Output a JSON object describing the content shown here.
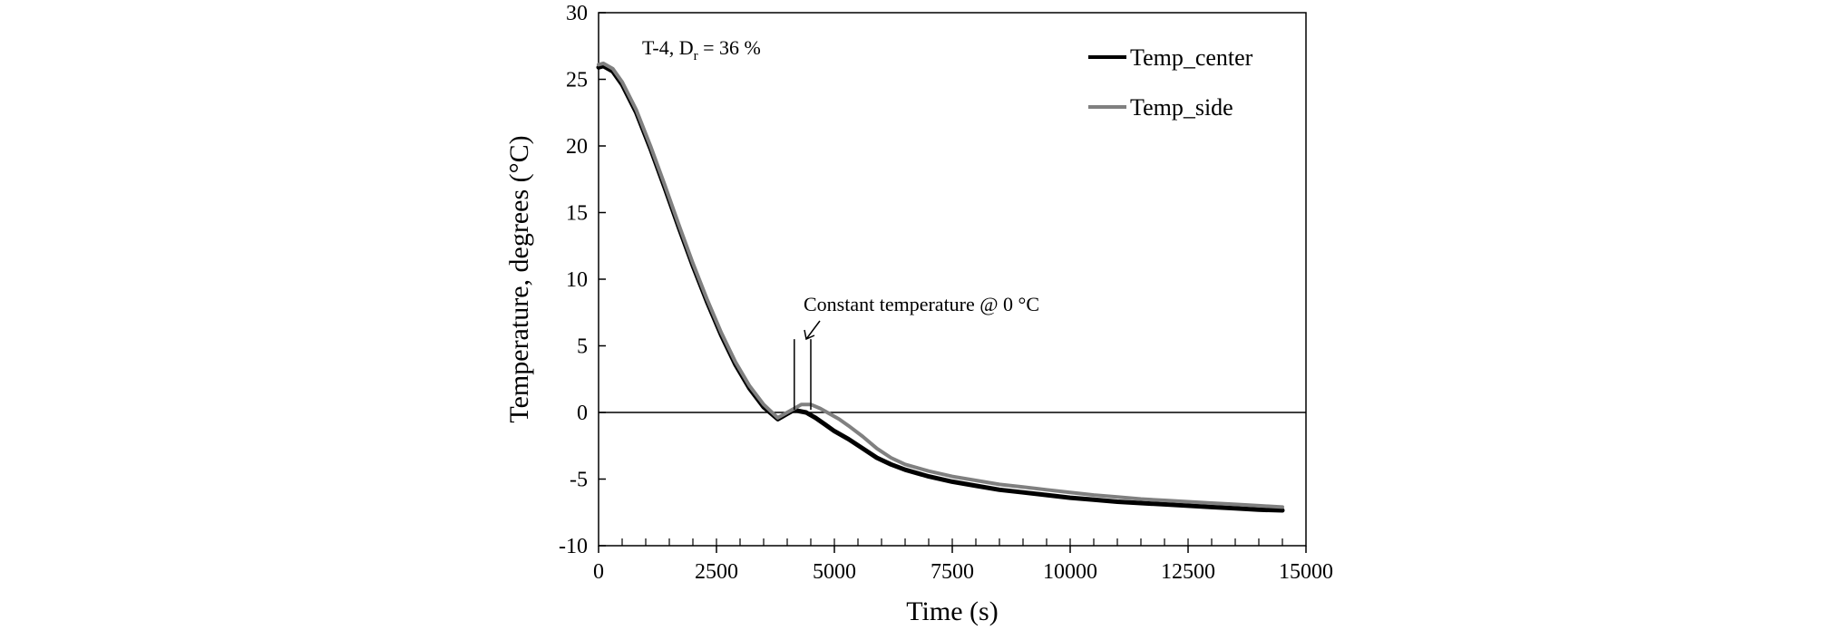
{
  "chart_data": {
    "type": "line",
    "xlabel": "Time (s)",
    "ylabel": "Temperature, degrees (°C)",
    "xlim": [
      0,
      15000
    ],
    "ylim": [
      -10,
      30
    ],
    "x_ticks": [
      0,
      2500,
      5000,
      7500,
      10000,
      12500,
      15000
    ],
    "y_ticks": [
      30,
      25,
      20,
      15,
      10,
      5,
      0,
      -5,
      -10
    ],
    "x_minor_step": 500,
    "grid": false,
    "legend_position": "top-right",
    "reference_line_y": 0,
    "annotations": {
      "test_id": "T-4, D",
      "subscript": "r",
      "test_value": " = 36 %",
      "constant_temp": "Constant temperature @ 0 °C"
    },
    "constant_temp_markers_x": [
      4150,
      4500
    ],
    "series": [
      {
        "name": "Temp_center",
        "color": "#000000",
        "x": [
          0,
          100,
          300,
          500,
          800,
          1100,
          1400,
          1700,
          2000,
          2300,
          2600,
          2900,
          3200,
          3500,
          3800,
          4000,
          4150,
          4250,
          4400,
          4600,
          4800,
          5000,
          5300,
          5600,
          5900,
          6200,
          6500,
          7000,
          7500,
          8000,
          8500,
          9000,
          9500,
          10000,
          10500,
          11000,
          11500,
          12000,
          12500,
          13000,
          13500,
          14000,
          14500
        ],
        "y": [
          25.9,
          26.0,
          25.6,
          24.6,
          22.5,
          19.8,
          16.9,
          13.9,
          11.0,
          8.3,
          5.8,
          3.6,
          1.8,
          0.4,
          -0.5,
          -0.1,
          0.2,
          0.1,
          0.0,
          -0.4,
          -0.9,
          -1.4,
          -2.0,
          -2.7,
          -3.4,
          -3.9,
          -4.3,
          -4.8,
          -5.2,
          -5.5,
          -5.8,
          -6.0,
          -6.2,
          -6.4,
          -6.55,
          -6.7,
          -6.8,
          -6.9,
          -7.0,
          -7.1,
          -7.2,
          -7.3,
          -7.35
        ]
      },
      {
        "name": "Temp_side",
        "color": "#808080",
        "x": [
          0,
          100,
          300,
          500,
          800,
          1100,
          1400,
          1700,
          2000,
          2300,
          2600,
          2900,
          3200,
          3500,
          3800,
          4000,
          4150,
          4300,
          4500,
          4700,
          4900,
          5100,
          5300,
          5600,
          5900,
          6200,
          6500,
          7000,
          7500,
          8000,
          8500,
          9000,
          9500,
          10000,
          10500,
          11000,
          11500,
          12000,
          12500,
          13000,
          13500,
          14000,
          14500
        ],
        "y": [
          26.1,
          26.2,
          25.8,
          24.8,
          22.7,
          20.0,
          17.1,
          14.1,
          11.2,
          8.5,
          6.0,
          3.8,
          2.0,
          0.6,
          -0.4,
          0.0,
          0.3,
          0.6,
          0.6,
          0.3,
          -0.1,
          -0.5,
          -1.0,
          -1.8,
          -2.7,
          -3.4,
          -3.9,
          -4.4,
          -4.8,
          -5.1,
          -5.4,
          -5.6,
          -5.8,
          -6.0,
          -6.2,
          -6.35,
          -6.5,
          -6.6,
          -6.7,
          -6.8,
          -6.9,
          -7.0,
          -7.1
        ]
      }
    ]
  }
}
